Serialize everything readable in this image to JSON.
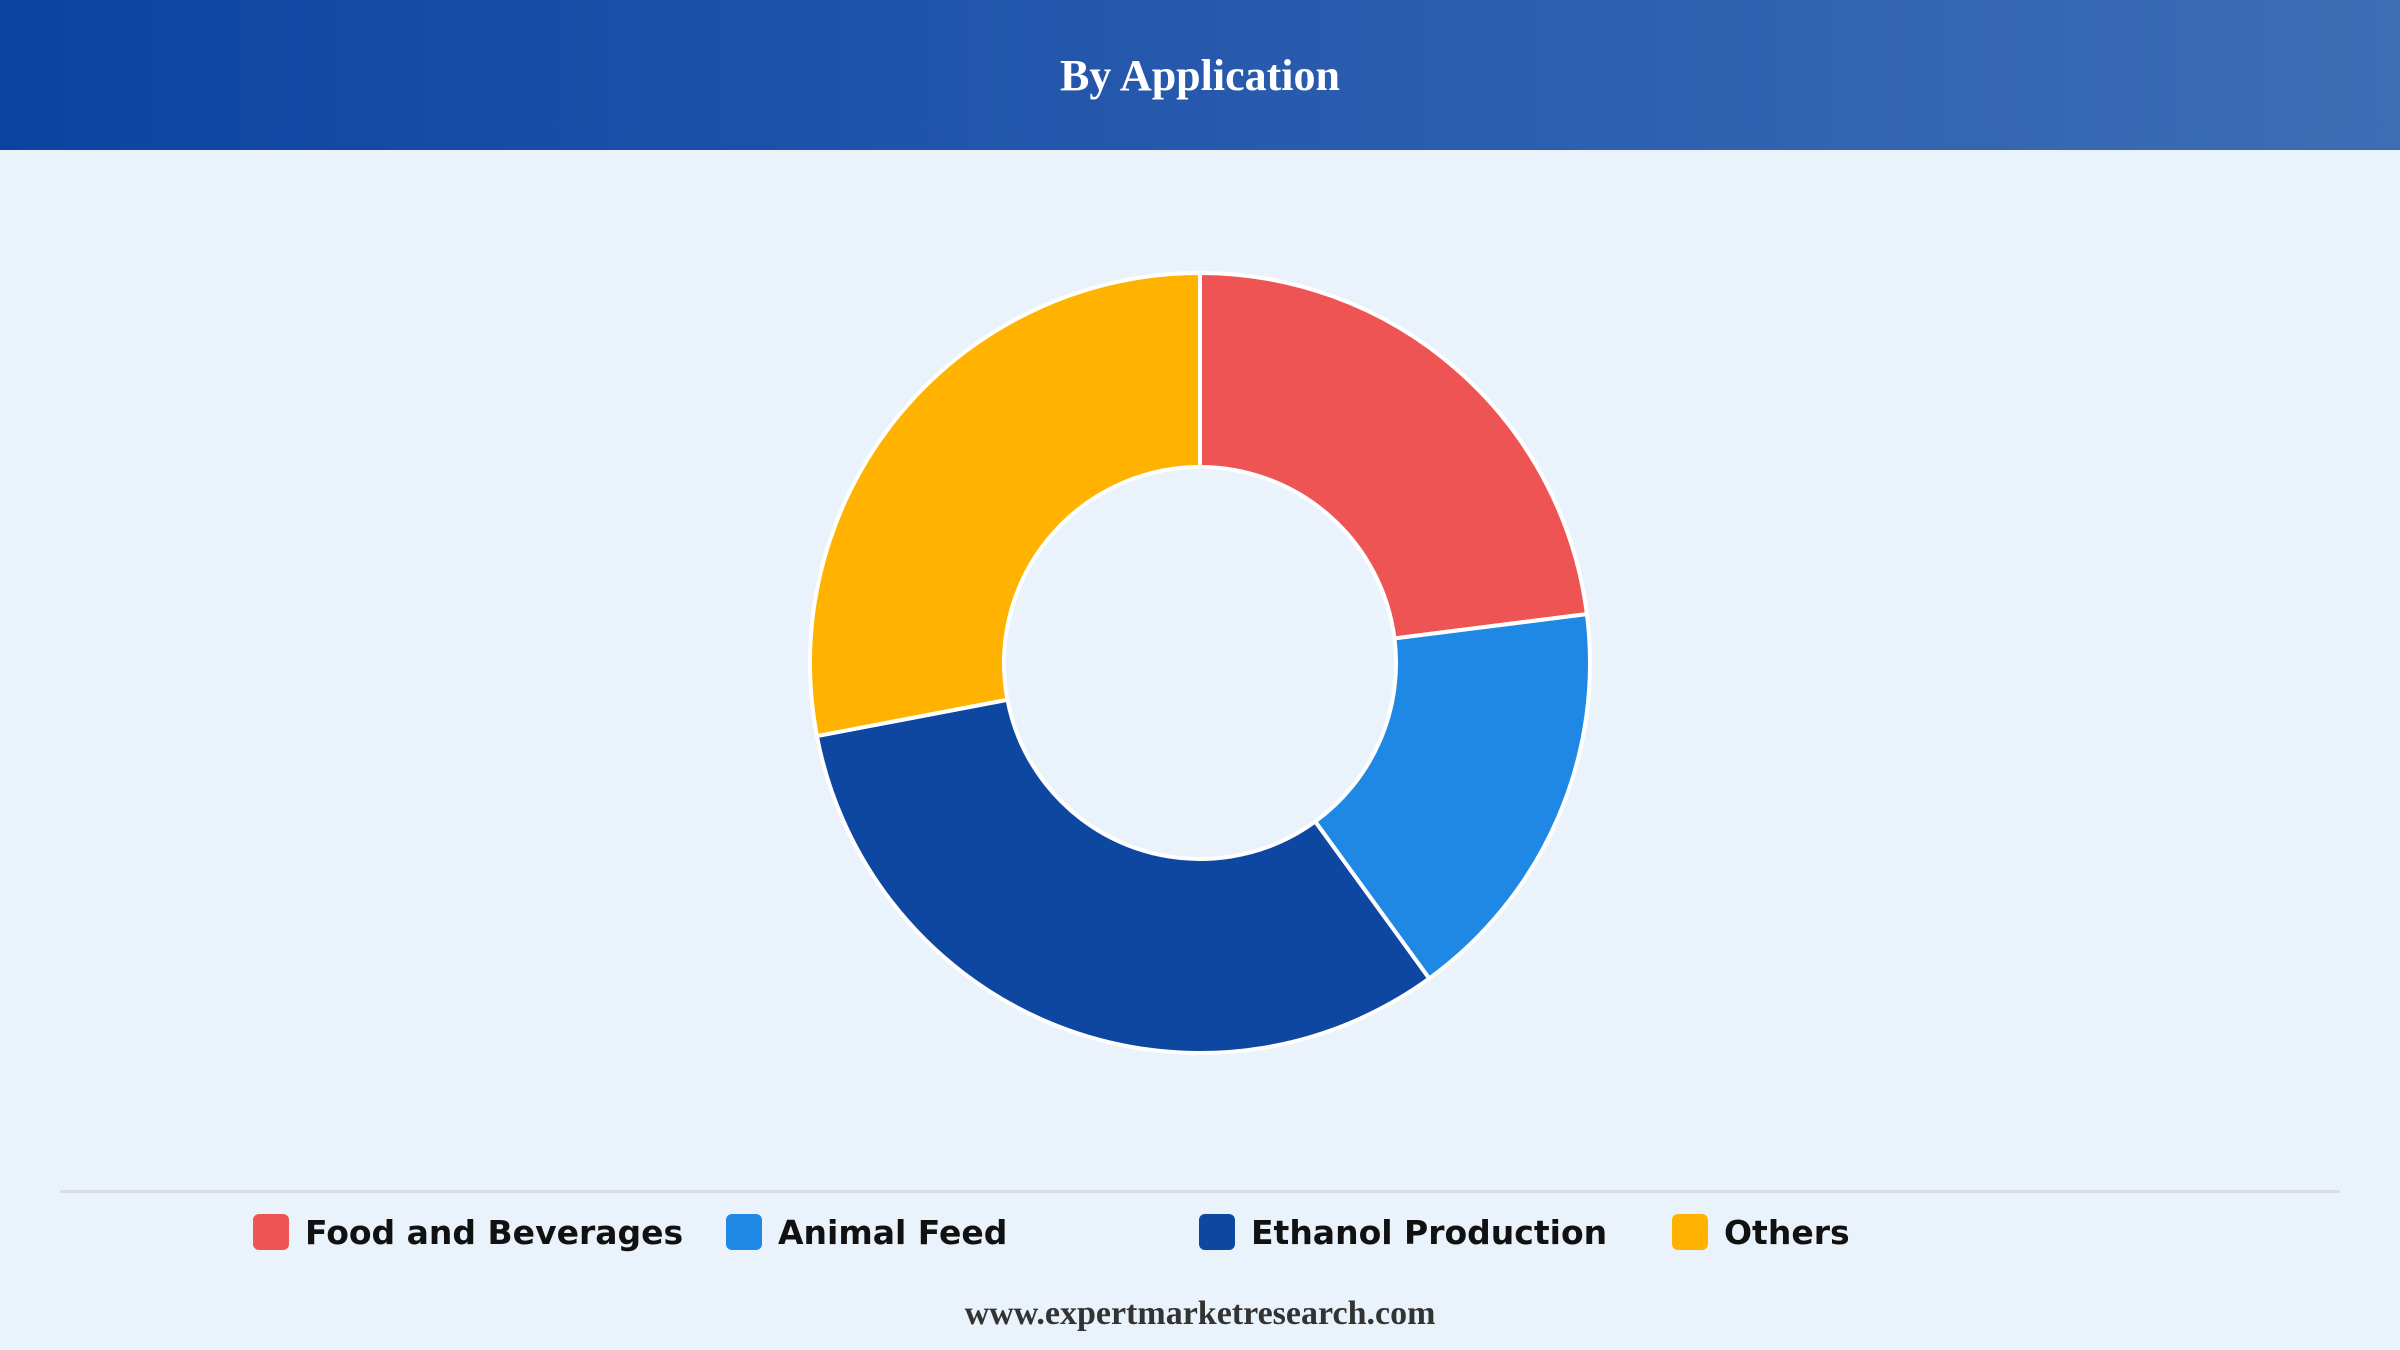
{
  "header": {
    "title": "By Application"
  },
  "chart_data": {
    "type": "pie",
    "donut": true,
    "title": "By Application",
    "categories": [
      "Food and Beverages",
      "Animal Feed",
      "Ethanol Production",
      "Others"
    ],
    "values": [
      23,
      17,
      32,
      28
    ],
    "unit": "%",
    "colors": [
      "#ef5454",
      "#1f88e5",
      "#0d47a1",
      "#ffb300"
    ],
    "legend_position": "bottom",
    "start_angle": "top",
    "direction": "clockwise"
  },
  "footer": {
    "website": "www.expertmarketresearch.com"
  }
}
